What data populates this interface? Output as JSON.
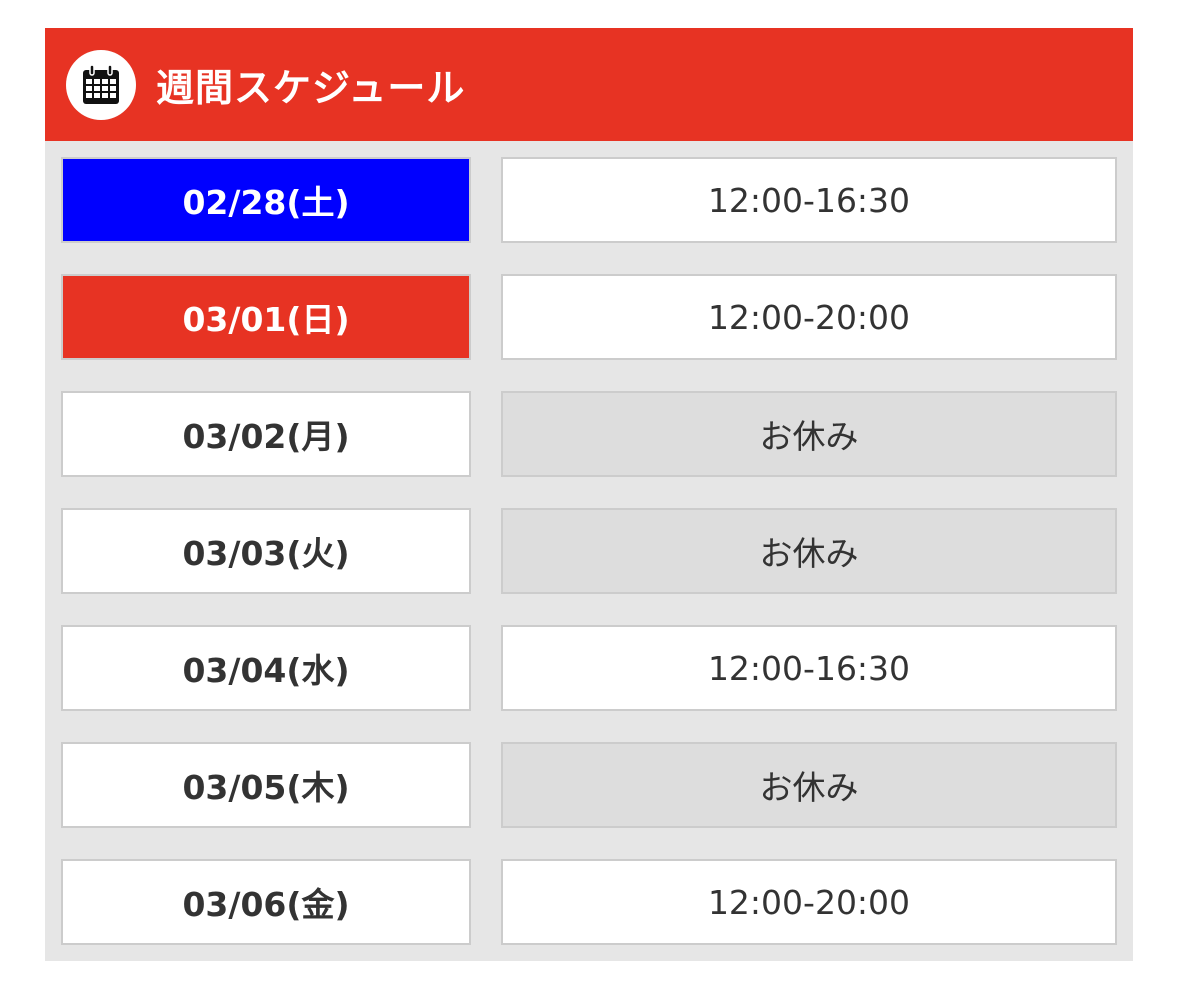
{
  "header": {
    "title": "週間スケジュール",
    "icon": "calendar-icon"
  },
  "colors": {
    "header": "#e73323",
    "saturday": "#0000ff",
    "sunday": "#e73323",
    "off_day": "#dddddd"
  },
  "schedule": [
    {
      "date": "02/28(土)",
      "hours": "12:00-16:30",
      "day_type": "saturday",
      "off": false
    },
    {
      "date": "03/01(日)",
      "hours": "12:00-20:00",
      "day_type": "sunday",
      "off": false
    },
    {
      "date": "03/02(月)",
      "hours": "お休み",
      "day_type": "weekday",
      "off": true
    },
    {
      "date": "03/03(火)",
      "hours": "お休み",
      "day_type": "weekday",
      "off": true
    },
    {
      "date": "03/04(水)",
      "hours": "12:00-16:30",
      "day_type": "weekday",
      "off": false
    },
    {
      "date": "03/05(木)",
      "hours": "お休み",
      "day_type": "weekday",
      "off": true
    },
    {
      "date": "03/06(金)",
      "hours": "12:00-20:00",
      "day_type": "weekday",
      "off": false
    }
  ]
}
